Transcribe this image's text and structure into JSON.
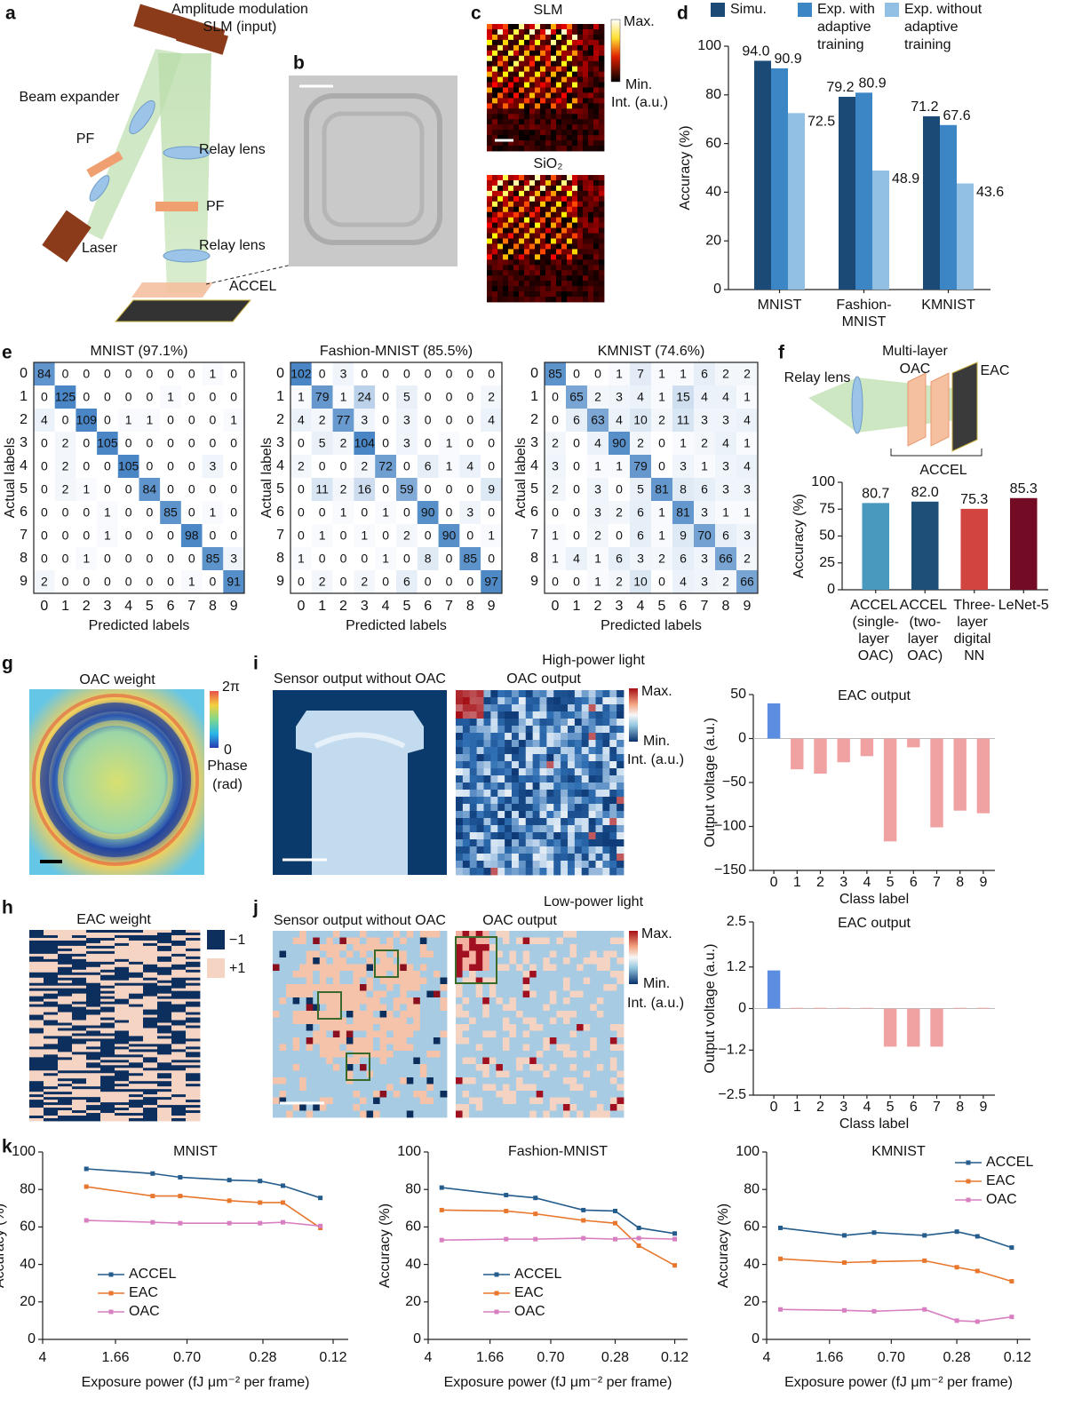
{
  "figure": {
    "panel_labels": [
      "a",
      "b",
      "c",
      "d",
      "e",
      "f",
      "g",
      "h",
      "i",
      "j",
      "k"
    ],
    "a": {
      "texts": [
        "Amplitude modulation",
        "SLM (input)",
        "Beam expander",
        "PF",
        "Relay lens",
        "PF",
        "Laser",
        "Relay lens",
        "ACCEL"
      ]
    },
    "c": {
      "titles": [
        "SLM",
        "SiO₂"
      ],
      "colorbar": [
        "Max.",
        "Min.",
        "Int. (a.u.)"
      ]
    },
    "f": {
      "texts": [
        "Relay lens",
        "Multi-layer",
        "OAC",
        "EAC",
        "ACCEL"
      ]
    },
    "g": {
      "title": "OAC weight",
      "colorbar": [
        "2π",
        "0",
        "Phase",
        "(rad)"
      ]
    },
    "h": {
      "title": "EAC weight",
      "legend": [
        "−1",
        "+1"
      ]
    },
    "i": {
      "condition": "High-power light",
      "titles": [
        "Sensor output without OAC",
        "OAC output"
      ],
      "colorbar": [
        "Max.",
        "Min.",
        "Int. (a.u.)"
      ]
    },
    "j": {
      "condition": "Low-power light",
      "titles": [
        "Sensor output without OAC",
        "OAC output"
      ],
      "colorbar": [
        "Max.",
        "Min.",
        "Int. (a.u.)"
      ]
    }
  },
  "chart_data": [
    {
      "type": "bar",
      "categories": [
        "MNIST",
        "Fashion-MNIST",
        "KMNIST"
      ],
      "ylabel": "Accuracy (%)",
      "ylim": [
        0,
        100
      ],
      "yticks": [
        0,
        20,
        40,
        60,
        80,
        100
      ],
      "legend": "top",
      "series": [
        {
          "name": "Simu.",
          "color": "#1b4a77",
          "values": [
            94.0,
            79.2,
            71.2
          ],
          "value_labels": [
            "94.0",
            "79.2",
            "71.2"
          ]
        },
        {
          "name": "Exp. with adaptive training",
          "color": "#3d86c6",
          "values": [
            90.9,
            80.9,
            67.6
          ],
          "value_labels": [
            "90.9",
            "80.9",
            "67.6"
          ]
        },
        {
          "name": "Exp. without adaptive training",
          "color": "#92c0e4",
          "values": [
            72.5,
            48.9,
            43.6
          ],
          "value_labels": [
            "72.5",
            "48.9",
            "43.6"
          ]
        }
      ]
    },
    {
      "type": "heatmap",
      "title": "MNIST (97.1%)",
      "xlabel": "Predicted labels",
      "ylabel": "Actual labels",
      "categories": [
        "0",
        "1",
        "2",
        "3",
        "4",
        "5",
        "6",
        "7",
        "8",
        "9"
      ],
      "values": [
        [
          84,
          0,
          0,
          0,
          0,
          0,
          0,
          0,
          1,
          0
        ],
        [
          0,
          125,
          0,
          0,
          0,
          0,
          1,
          0,
          0,
          0
        ],
        [
          4,
          0,
          109,
          0,
          1,
          1,
          0,
          0,
          0,
          1
        ],
        [
          0,
          2,
          0,
          105,
          0,
          0,
          0,
          0,
          0,
          0
        ],
        [
          0,
          2,
          0,
          0,
          105,
          0,
          0,
          0,
          3,
          0
        ],
        [
          0,
          2,
          1,
          0,
          0,
          84,
          0,
          0,
          0,
          0
        ],
        [
          0,
          0,
          0,
          1,
          0,
          0,
          85,
          0,
          1,
          0
        ],
        [
          0,
          0,
          0,
          1,
          0,
          0,
          0,
          98,
          0,
          0
        ],
        [
          0,
          0,
          1,
          0,
          0,
          0,
          0,
          0,
          85,
          3
        ],
        [
          2,
          0,
          0,
          0,
          0,
          0,
          0,
          1,
          0,
          91
        ]
      ]
    },
    {
      "type": "heatmap",
      "title": "Fashion-MNIST (85.5%)",
      "xlabel": "Predicted labels",
      "ylabel": "Actual labels",
      "categories": [
        "0",
        "1",
        "2",
        "3",
        "4",
        "5",
        "6",
        "7",
        "8",
        "9"
      ],
      "values": [
        [
          102,
          0,
          3,
          0,
          0,
          0,
          0,
          0,
          0,
          0
        ],
        [
          1,
          79,
          1,
          24,
          0,
          5,
          0,
          0,
          0,
          2
        ],
        [
          4,
          2,
          77,
          3,
          0,
          3,
          0,
          0,
          0,
          4
        ],
        [
          0,
          5,
          2,
          104,
          0,
          3,
          0,
          1,
          0,
          0
        ],
        [
          2,
          0,
          0,
          2,
          72,
          0,
          6,
          1,
          4,
          0
        ],
        [
          0,
          11,
          2,
          16,
          0,
          59,
          0,
          0,
          0,
          9
        ],
        [
          0,
          0,
          1,
          0,
          1,
          0,
          90,
          0,
          3,
          0
        ],
        [
          0,
          1,
          0,
          1,
          0,
          2,
          0,
          90,
          0,
          1
        ],
        [
          1,
          0,
          0,
          0,
          1,
          0,
          8,
          0,
          85,
          0
        ],
        [
          0,
          2,
          0,
          2,
          0,
          6,
          0,
          0,
          0,
          97
        ]
      ]
    },
    {
      "type": "heatmap",
      "title": "KMNIST (74.6%)",
      "xlabel": "Predicted labels",
      "ylabel": "Actual labels",
      "categories": [
        "0",
        "1",
        "2",
        "3",
        "4",
        "5",
        "6",
        "7",
        "8",
        "9"
      ],
      "values": [
        [
          85,
          0,
          0,
          1,
          7,
          1,
          1,
          6,
          2,
          2
        ],
        [
          0,
          65,
          2,
          3,
          4,
          1,
          15,
          4,
          4,
          1
        ],
        [
          0,
          6,
          63,
          4,
          10,
          2,
          11,
          3,
          3,
          4
        ],
        [
          2,
          0,
          4,
          90,
          2,
          0,
          1,
          2,
          4,
          1
        ],
        [
          3,
          0,
          1,
          1,
          79,
          0,
          3,
          1,
          3,
          4
        ],
        [
          2,
          0,
          3,
          0,
          5,
          81,
          8,
          6,
          3,
          3
        ],
        [
          0,
          0,
          3,
          2,
          6,
          1,
          81,
          3,
          1,
          1
        ],
        [
          1,
          0,
          2,
          0,
          6,
          1,
          9,
          70,
          6,
          3
        ],
        [
          1,
          4,
          1,
          6,
          3,
          2,
          6,
          3,
          66,
          2
        ],
        [
          0,
          0,
          1,
          2,
          10,
          0,
          4,
          3,
          2,
          66
        ]
      ]
    },
    {
      "type": "bar",
      "categories": [
        "ACCEL (single-layer OAC)",
        "ACCEL (two-layer OAC)",
        "Three-layer digital NN",
        "LeNet-5"
      ],
      "values": [
        80.7,
        82.0,
        75.3,
        85.3
      ],
      "value_labels": [
        "80.7",
        "82.0",
        "75.3",
        "85.3"
      ],
      "colors": [
        "#4899bd",
        "#1d4f78",
        "#d2443f",
        "#740b24"
      ],
      "ylabel": "Accuracy (%)",
      "ylim": [
        0,
        100
      ],
      "yticks": [
        0,
        25,
        50,
        75,
        100
      ]
    },
    {
      "type": "bar",
      "title": "EAC output",
      "xlabel": "Class label",
      "ylabel": "Output voltage (a.u.)",
      "categories": [
        "0",
        "1",
        "2",
        "3",
        "4",
        "5",
        "6",
        "7",
        "8",
        "9"
      ],
      "values": [
        40,
        -35,
        -40,
        -27,
        -20,
        -117,
        -10,
        -101,
        -82,
        -85
      ],
      "colors": [
        "#5b8ee0",
        "#f0a1a1",
        "#f0a1a1",
        "#f0a1a1",
        "#f0a1a1",
        "#f0a1a1",
        "#f0a1a1",
        "#f0a1a1",
        "#f0a1a1",
        "#f0a1a1"
      ],
      "ylim": [
        -150,
        50
      ],
      "yticks": [
        {
          "value": -150,
          "label": "−150"
        },
        {
          "value": -100,
          "label": "−100"
        },
        {
          "value": -50,
          "label": "−50"
        },
        0,
        50
      ]
    },
    {
      "type": "bar",
      "title": "EAC output",
      "xlabel": "Class label",
      "ylabel": "Output voltage (a.u.)",
      "categories": [
        "0",
        "1",
        "2",
        "3",
        "4",
        "5",
        "6",
        "7",
        "8",
        "9"
      ],
      "values": [
        1.1,
        0.02,
        0.02,
        0.02,
        0.02,
        -1.1,
        -1.1,
        -1.1,
        0.02,
        0.02
      ],
      "colors": [
        "#5b8ee0",
        "#f0a1a1",
        "#f0a1a1",
        "#f0a1a1",
        "#f0a1a1",
        "#f0a1a1",
        "#f0a1a1",
        "#f0a1a1",
        "#f0a1a1",
        "#f0a1a1"
      ],
      "ylim": [
        -2.5,
        2.5
      ],
      "yticks": [
        {
          "value": -2.5,
          "label": "−2.5"
        },
        {
          "value": -1.2,
          "label": "−1.2"
        },
        0,
        1.2,
        2.5
      ]
    },
    {
      "type": "line",
      "title": "MNIST",
      "xlabel": "Exposure power (fJ μm⁻² per frame)",
      "ylabel": "Accuracy (%)",
      "x": [
        2.36,
        1.06,
        0.76,
        0.42,
        0.29,
        0.22,
        0.14
      ],
      "xscale": "log",
      "xlim": [
        4,
        0.1
      ],
      "xticks": [
        4,
        1.66,
        {
          "value": 0.7,
          "label": "0.70"
        },
        0.28,
        0.12
      ],
      "ylim": [
        0,
        100
      ],
      "yticks": [
        0,
        20,
        40,
        60,
        80,
        100
      ],
      "legend": "lower left",
      "series": [
        {
          "name": "ACCEL",
          "color": "#245c8c",
          "values": [
            91,
            88.5,
            86.5,
            85,
            84.5,
            82,
            75.5
          ]
        },
        {
          "name": "EAC",
          "color": "#e8772e",
          "values": [
            81.5,
            76.5,
            76.5,
            74,
            73,
            73,
            59.5
          ]
        },
        {
          "name": "OAC",
          "color": "#d77fc0",
          "values": [
            63.5,
            62.5,
            62,
            62,
            62,
            62.5,
            60.5
          ]
        }
      ]
    },
    {
      "type": "line",
      "title": "Fashion-MNIST",
      "xlabel": "Exposure power (fJ μm⁻² per frame)",
      "ylabel": "Accuracy (%)",
      "x": [
        3.3,
        1.32,
        0.87,
        0.44,
        0.28,
        0.2,
        0.12
      ],
      "xscale": "log",
      "xlim": [
        4,
        0.1
      ],
      "xticks": [
        4,
        1.66,
        {
          "value": 0.7,
          "label": "0.70"
        },
        0.28,
        0.12
      ],
      "ylim": [
        0,
        100
      ],
      "yticks": [
        0,
        20,
        40,
        60,
        80,
        100
      ],
      "legend": "lower left",
      "series": [
        {
          "name": "ACCEL",
          "color": "#245c8c",
          "values": [
            81,
            77,
            75.5,
            69,
            68.5,
            59.5,
            56.5
          ]
        },
        {
          "name": "EAC",
          "color": "#e8772e",
          "values": [
            69,
            68.5,
            67,
            63.5,
            62,
            50,
            39.5
          ]
        },
        {
          "name": "OAC",
          "color": "#d77fc0",
          "values": [
            53,
            53.5,
            53.5,
            54,
            53.5,
            54,
            53.5
          ]
        }
      ]
    },
    {
      "type": "line",
      "title": "KMNIST",
      "xlabel": "Exposure power (fJ μm⁻² per frame)",
      "ylabel": "Accuracy (%)",
      "x": [
        3.3,
        1.35,
        0.89,
        0.44,
        0.28,
        0.21,
        0.13
      ],
      "xscale": "log",
      "xlim": [
        4,
        0.1
      ],
      "xticks": [
        4,
        1.66,
        {
          "value": 0.7,
          "label": "0.70"
        },
        0.28,
        0.12
      ],
      "ylim": [
        0,
        100
      ],
      "yticks": [
        0,
        20,
        40,
        60,
        80,
        100
      ],
      "legend": "upper right",
      "series": [
        {
          "name": "ACCEL",
          "color": "#245c8c",
          "values": [
            59.5,
            55.5,
            57,
            55.5,
            57.5,
            55,
            49
          ]
        },
        {
          "name": "EAC",
          "color": "#e8772e",
          "values": [
            43,
            41,
            41.5,
            42,
            38.5,
            36.5,
            31
          ]
        },
        {
          "name": "OAC",
          "color": "#d77fc0",
          "values": [
            16,
            15.5,
            15,
            16,
            10,
            9.5,
            12
          ]
        }
      ]
    }
  ]
}
